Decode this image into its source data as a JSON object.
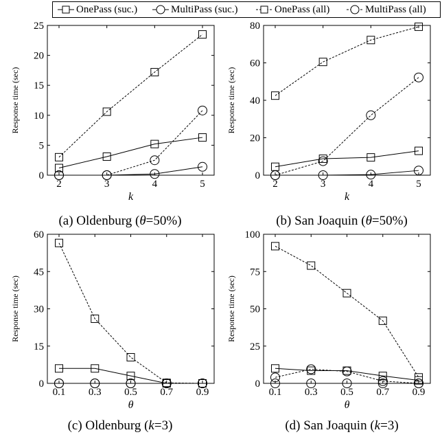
{
  "legend": [
    {
      "label": "OnePass (suc.)",
      "marker": "square",
      "dash": "solid"
    },
    {
      "label": "MultiPass (suc.)",
      "marker": "circle",
      "dash": "solid"
    },
    {
      "label": "OnePass (all)",
      "marker": "square",
      "dash": "dashed"
    },
    {
      "label": "MultiPass (all)",
      "marker": "circle",
      "dash": "dashed"
    }
  ],
  "chart_data": [
    {
      "type": "line",
      "caption": {
        "prefix": "(a) Oldenburg (",
        "var": "θ",
        "suffix": "=50%)"
      },
      "xlabel": "k",
      "ylabel": "Response time (sec)",
      "x": [
        2,
        3,
        4,
        5
      ],
      "xticks": [
        "2",
        "3",
        "4",
        "5"
      ],
      "ylim": [
        0,
        25
      ],
      "yticks": [
        0,
        5,
        10,
        15,
        20,
        25
      ],
      "grid": false,
      "legend_position": "top",
      "series": [
        {
          "name": "OnePass (suc.)",
          "values": [
            1.2,
            3.1,
            5.2,
            6.3
          ]
        },
        {
          "name": "MultiPass (suc.)",
          "values": [
            0.0,
            0.0,
            0.2,
            1.4
          ]
        },
        {
          "name": "OnePass (all)",
          "values": [
            3.0,
            10.6,
            17.2,
            23.5
          ]
        },
        {
          "name": "MultiPass (all)",
          "values": [
            0.0,
            0.0,
            2.5,
            10.8
          ]
        }
      ]
    },
    {
      "type": "line",
      "caption": {
        "prefix": "(b) San Joaquin (",
        "var": "θ",
        "suffix": "=50%)"
      },
      "xlabel": "k",
      "ylabel": "Response time (sec)",
      "x": [
        2,
        3,
        4,
        5
      ],
      "xticks": [
        "2",
        "3",
        "4",
        "5"
      ],
      "ylim": [
        0,
        80
      ],
      "yticks": [
        0,
        20,
        40,
        60,
        80
      ],
      "grid": false,
      "legend_position": "top",
      "series": [
        {
          "name": "OnePass (suc.)",
          "values": [
            4.5,
            8.8,
            9.5,
            13.0
          ]
        },
        {
          "name": "MultiPass (suc.)",
          "values": [
            0.0,
            0.0,
            0.3,
            2.5
          ]
        },
        {
          "name": "OnePass (all)",
          "values": [
            42.5,
            60.5,
            72.2,
            79.3
          ]
        },
        {
          "name": "MultiPass (all)",
          "values": [
            0.0,
            7.5,
            32.0,
            52.2
          ]
        }
      ]
    },
    {
      "type": "line",
      "caption": {
        "prefix": "(c) Oldenburg (",
        "var": "k",
        "suffix": "=3)"
      },
      "xlabel": "θ",
      "ylabel": "Response time (sec)",
      "x": [
        0.1,
        0.3,
        0.5,
        0.7,
        0.9
      ],
      "xticks": [
        "0.1",
        "0.3",
        "0.5",
        "0.7",
        "0.9"
      ],
      "ylim": [
        0,
        60
      ],
      "yticks": [
        0,
        15,
        30,
        45,
        60
      ],
      "grid": false,
      "legend_position": "top",
      "series": [
        {
          "name": "OnePass (suc.)",
          "values": [
            6.0,
            6.0,
            3.0,
            0.0,
            0.0
          ]
        },
        {
          "name": "MultiPass (suc.)",
          "values": [
            0.0,
            0.0,
            0.0,
            0.0,
            0.0
          ]
        },
        {
          "name": "OnePass (all)",
          "values": [
            56.5,
            26.0,
            10.5,
            0.2,
            0.0
          ]
        },
        {
          "name": "MultiPass (all)",
          "values": [
            0.0,
            0.0,
            0.0,
            0.0,
            0.0
          ]
        }
      ]
    },
    {
      "type": "line",
      "caption": {
        "prefix": "(d) San Joaquin (",
        "var": "k",
        "suffix": "=3)"
      },
      "xlabel": "θ",
      "ylabel": "Response time (sec)",
      "x": [
        0.1,
        0.3,
        0.5,
        0.7,
        0.9
      ],
      "xticks": [
        "0.1",
        "0.3",
        "0.5",
        "0.7",
        "0.9"
      ],
      "ylim": [
        0,
        100
      ],
      "yticks": [
        0,
        25,
        50,
        75,
        100
      ],
      "grid": false,
      "legend_position": "top",
      "series": [
        {
          "name": "OnePass (suc.)",
          "values": [
            10.0,
            8.5,
            8.5,
            5.0,
            2.0
          ]
        },
        {
          "name": "MultiPass (suc.)",
          "values": [
            0.0,
            0.0,
            0.0,
            0.0,
            0.0
          ]
        },
        {
          "name": "OnePass (all)",
          "values": [
            92.0,
            79.0,
            60.5,
            42.0,
            4.0
          ]
        },
        {
          "name": "MultiPass (all)",
          "values": [
            4.0,
            9.5,
            8.0,
            1.5,
            0.0
          ]
        }
      ]
    }
  ]
}
